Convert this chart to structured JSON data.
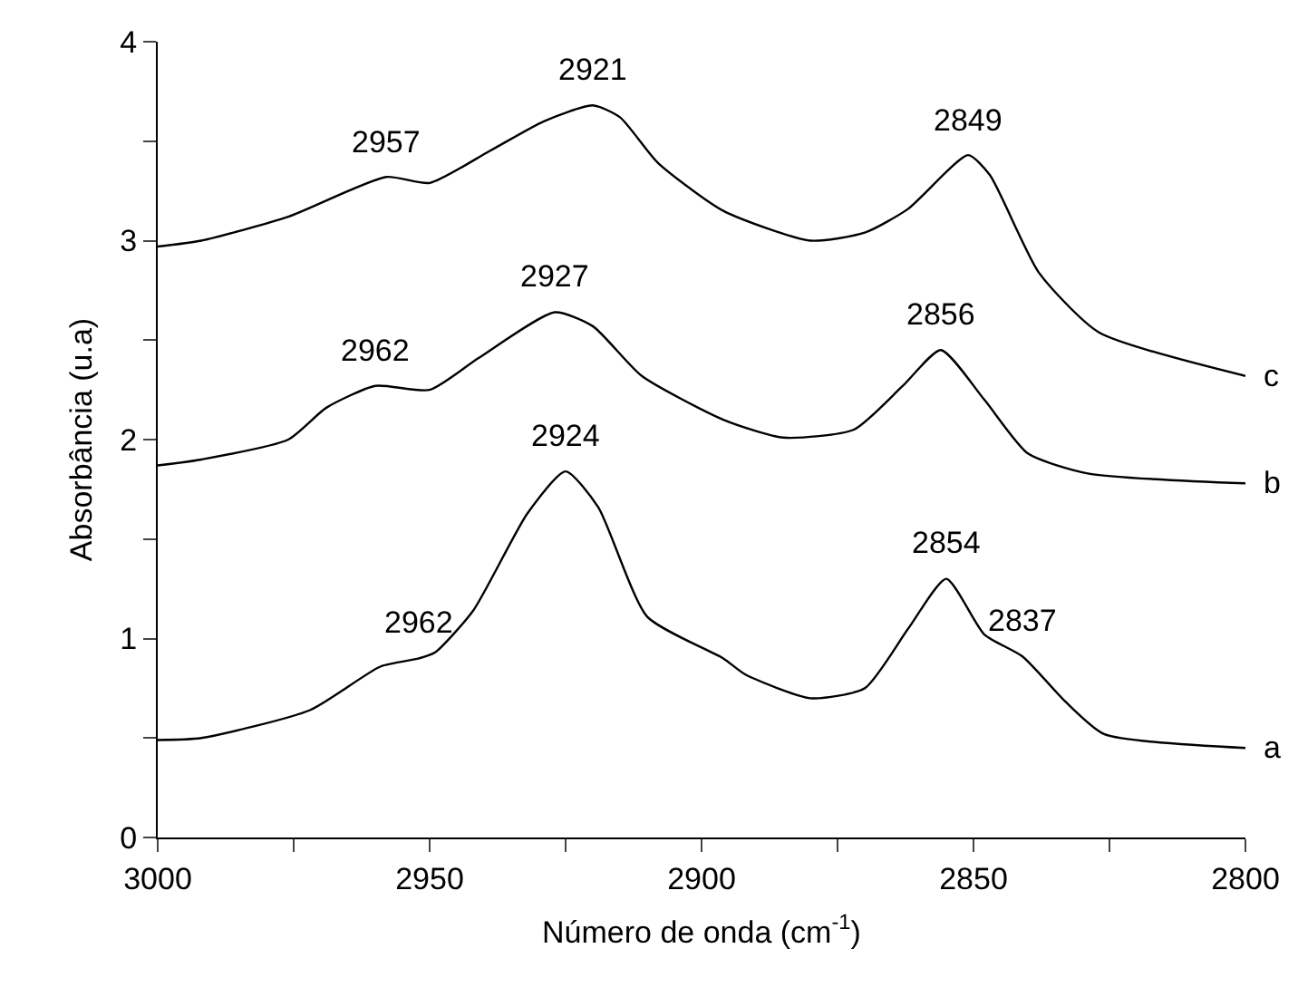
{
  "chart_data": {
    "type": "line",
    "xlabel": "Número de onda (cm$^{-1}$)",
    "ylabel": "Absorbância (u.a)",
    "xlim": [
      3000,
      2800
    ],
    "ylim": [
      0,
      4
    ],
    "xticks": [
      3000,
      {
        "value": 2975,
        "label": null
      },
      2950,
      {
        "value": 2925,
        "label": null
      },
      2900,
      {
        "value": 2875,
        "label": null
      },
      2850,
      {
        "value": 2825,
        "label": null
      },
      2800
    ],
    "yticks": [
      0,
      {
        "value": 0.5,
        "label": null
      },
      1,
      {
        "value": 1.5,
        "label": null
      },
      2,
      {
        "value": 2.5,
        "label": null
      },
      3,
      {
        "value": 3.5,
        "label": null
      },
      4
    ],
    "grid": false,
    "legend": false,
    "marker": "none",
    "line_style": "solid",
    "series": [
      {
        "name": "a",
        "color": "#000000",
        "x": [
          3000,
          2992,
          2972,
          2959,
          2952,
          2949,
          2942,
          2932,
          2925,
          2919,
          2910,
          2896,
          2892,
          2880,
          2870,
          2862,
          2855,
          2848,
          2841,
          2833,
          2826,
          2800
        ],
        "values": [
          0.49,
          0.5,
          0.64,
          0.86,
          0.9,
          0.93,
          1.14,
          1.63,
          1.84,
          1.66,
          1.11,
          0.9,
          0.82,
          0.7,
          0.75,
          1.05,
          1.3,
          1.02,
          0.91,
          0.68,
          0.52,
          0.45
        ]
      },
      {
        "name": "b",
        "color": "#000000",
        "x": [
          3000,
          2992,
          2976,
          2969,
          2960,
          2950,
          2941,
          2927,
          2920,
          2911,
          2896,
          2885,
          2872,
          2863,
          2856,
          2848,
          2840,
          2829,
          2800
        ],
        "values": [
          1.87,
          1.9,
          2.0,
          2.16,
          2.27,
          2.25,
          2.41,
          2.64,
          2.57,
          2.32,
          2.1,
          2.01,
          2.05,
          2.27,
          2.45,
          2.2,
          1.93,
          1.83,
          1.78
        ]
      },
      {
        "name": "c",
        "color": "#000000",
        "x": [
          3000,
          2992,
          2976,
          2958,
          2950,
          2939,
          2929,
          2920,
          2915,
          2908,
          2896,
          2880,
          2870,
          2862,
          2851,
          2847,
          2838,
          2827,
          2800
        ],
        "values": [
          2.97,
          3.0,
          3.12,
          3.32,
          3.29,
          3.45,
          3.6,
          3.68,
          3.62,
          3.39,
          3.15,
          3.0,
          3.04,
          3.16,
          3.43,
          3.33,
          2.84,
          2.54,
          2.32
        ]
      }
    ],
    "annotations": [
      {
        "text": "2962",
        "x": 2952,
        "y": 0.9
      },
      {
        "text": "2924",
        "x": 2925,
        "y": 1.84
      },
      {
        "text": "2854",
        "x": 2855,
        "y": 1.3
      },
      {
        "text": "2837",
        "x": 2841,
        "y": 0.91
      },
      {
        "text": "2962",
        "x": 2960,
        "y": 2.27
      },
      {
        "text": "2927",
        "x": 2927,
        "y": 2.64
      },
      {
        "text": "2856",
        "x": 2856,
        "y": 2.45
      },
      {
        "text": "2957",
        "x": 2958,
        "y": 3.32
      },
      {
        "text": "2921",
        "x": 2920,
        "y": 3.68
      },
      {
        "text": "2849",
        "x": 2851,
        "y": 3.43
      }
    ]
  }
}
